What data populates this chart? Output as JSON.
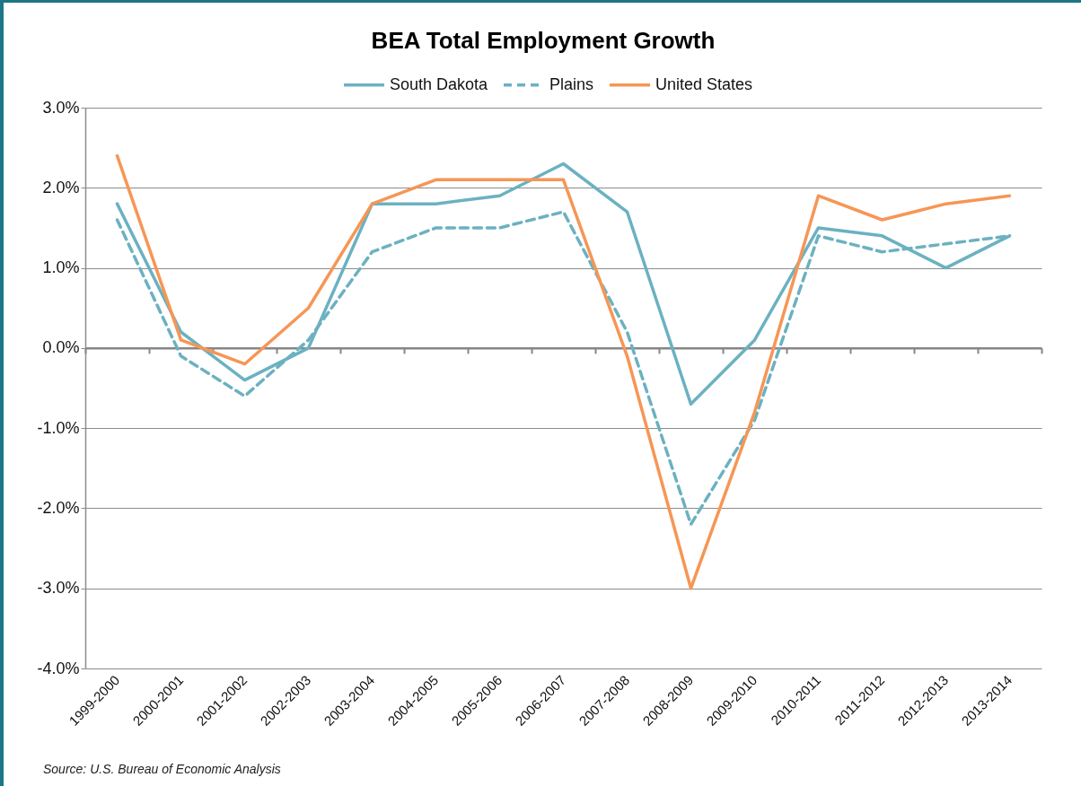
{
  "chart_data": {
    "type": "line",
    "title": "BEA Total Employment Growth",
    "categories": [
      "1999-2000",
      "2000-2001",
      "2001-2002",
      "2002-2003",
      "2003-2004",
      "2004-2005",
      "2005-2006",
      "2006-2007",
      "2007-2008",
      "2008-2009",
      "2009-2010",
      "2010-2011",
      "2011-2012",
      "2012-2013",
      "2013-2014"
    ],
    "series": [
      {
        "name": "South Dakota",
        "color": "#6bb1c1",
        "line_style": "solid",
        "values": [
          1.8,
          0.2,
          -0.4,
          0.0,
          1.8,
          1.8,
          1.9,
          2.3,
          1.7,
          -0.7,
          0.1,
          1.5,
          1.4,
          1.0,
          1.4
        ]
      },
      {
        "name": "Plains",
        "color": "#6bb1c1",
        "line_style": "dashed",
        "values": [
          1.6,
          -0.1,
          -0.6,
          0.1,
          1.2,
          1.5,
          1.5,
          1.7,
          0.2,
          -2.2,
          -0.9,
          1.4,
          1.2,
          1.3,
          1.4
        ]
      },
      {
        "name": "United States",
        "color": "#f69655",
        "line_style": "solid",
        "values": [
          2.4,
          0.1,
          -0.2,
          0.5,
          1.8,
          2.1,
          2.1,
          2.1,
          -0.1,
          -3.0,
          -0.8,
          1.9,
          1.6,
          1.8,
          1.9
        ]
      }
    ],
    "ylim": [
      -4,
      3
    ],
    "yticks": [
      {
        "value": -4,
        "label": "-4.0%"
      },
      {
        "value": -3,
        "label": "-3.0%"
      },
      {
        "value": -2,
        "label": "-2.0%"
      },
      {
        "value": -1,
        "label": "-1.0%"
      },
      {
        "value": 0,
        "label": "0.0%"
      },
      {
        "value": 1,
        "label": "1.0%"
      },
      {
        "value": 2,
        "label": "2.0%"
      },
      {
        "value": 3,
        "label": "3.0%"
      }
    ],
    "grid": "y",
    "legend": "top",
    "annotations": [
      "Source: U.S. Bureau of Economic Analysis"
    ]
  }
}
